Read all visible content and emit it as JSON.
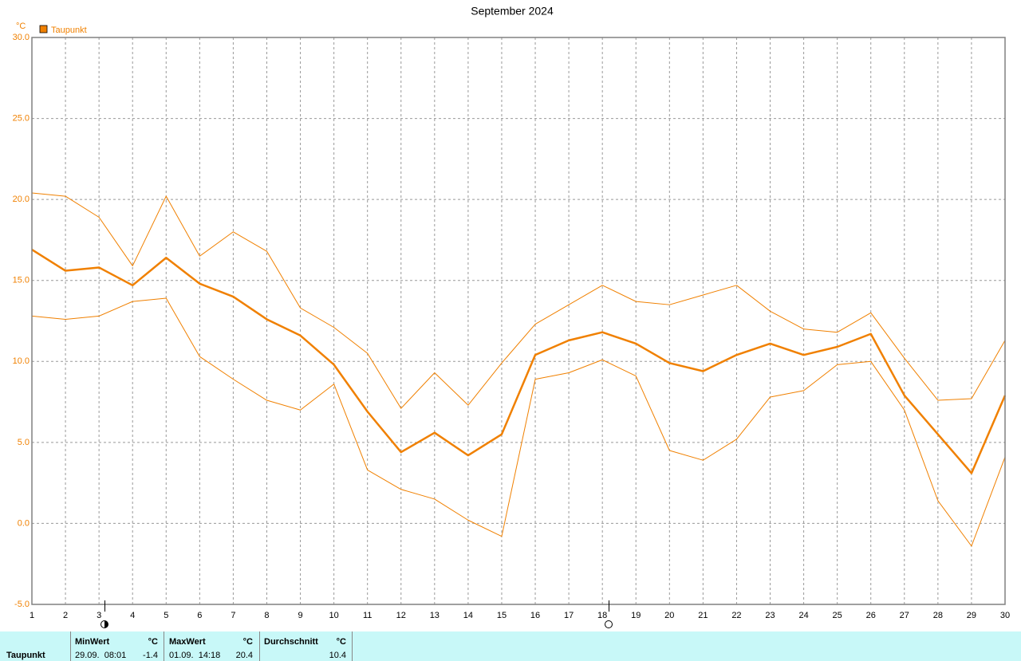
{
  "chart_data": {
    "type": "line",
    "title": "September 2024",
    "y_unit": "°C",
    "x": [
      1,
      2,
      3,
      4,
      5,
      6,
      7,
      8,
      9,
      10,
      11,
      12,
      13,
      14,
      15,
      16,
      17,
      18,
      19,
      20,
      21,
      22,
      23,
      24,
      25,
      26,
      27,
      28,
      29,
      30
    ],
    "xlim": [
      1,
      30
    ],
    "xticks": [
      1,
      2,
      3,
      4,
      5,
      6,
      7,
      8,
      9,
      10,
      11,
      12,
      13,
      14,
      15,
      16,
      17,
      18,
      19,
      20,
      21,
      22,
      23,
      24,
      25,
      26,
      27,
      28,
      29,
      30
    ],
    "ylim": [
      -5,
      30
    ],
    "yticks": [
      {
        "value": -5,
        "label": "-5.0"
      },
      {
        "value": 0,
        "label": "0.0"
      },
      {
        "value": 5,
        "label": "5.0"
      },
      {
        "value": 10,
        "label": "10.0"
      },
      {
        "value": 15,
        "label": "15.0"
      },
      {
        "value": 20,
        "label": "20.0"
      },
      {
        "value": 25,
        "label": "25.0"
      },
      {
        "value": 30,
        "label": "30.0"
      }
    ],
    "grid": true,
    "series": [
      {
        "name": "Taupunkt",
        "color": "#f08000",
        "values": [
          16.9,
          15.6,
          15.8,
          14.7,
          16.4,
          14.8,
          14.0,
          12.6,
          11.6,
          9.8,
          6.9,
          4.4,
          5.6,
          4.2,
          5.5,
          10.4,
          11.3,
          11.8,
          11.1,
          9.9,
          9.4,
          10.4,
          11.1,
          10.4,
          10.9,
          11.7,
          7.9,
          5.5,
          3.1,
          7.9
        ]
      },
      {
        "color": "#f08000",
        "values": [
          20.4,
          20.2,
          18.9,
          15.9,
          20.2,
          16.5,
          18.0,
          16.8,
          13.3,
          12.1,
          10.5,
          7.1,
          9.3,
          7.3,
          9.9,
          12.3,
          13.5,
          14.7,
          13.7,
          13.5,
          14.1,
          14.7,
          13.1,
          12.0,
          11.8,
          13.0,
          10.2,
          7.6,
          7.7,
          11.3
        ]
      },
      {
        "color": "#f08000",
        "values": [
          12.8,
          12.6,
          12.8,
          13.7,
          13.9,
          10.3,
          8.9,
          7.6,
          7.0,
          8.6,
          3.3,
          2.1,
          1.5,
          0.2,
          -0.8,
          8.9,
          9.3,
          10.1,
          9.1,
          4.5,
          3.9,
          5.2,
          7.8,
          8.2,
          9.8,
          10.0,
          7.0,
          1.4,
          -1.4,
          4.1
        ]
      }
    ]
  },
  "stats": {
    "row_label": "Taupunkt",
    "min": {
      "header": "MinWert",
      "unit": "°C",
      "time": "29.09.  08:01",
      "value": -1.4
    },
    "max": {
      "header": "MaxWert",
      "unit": "°C",
      "time": "01.09.  14:18",
      "value": 20.4
    },
    "avg": {
      "header": "Durchschnitt",
      "unit": "°C",
      "value": 10.4
    }
  }
}
